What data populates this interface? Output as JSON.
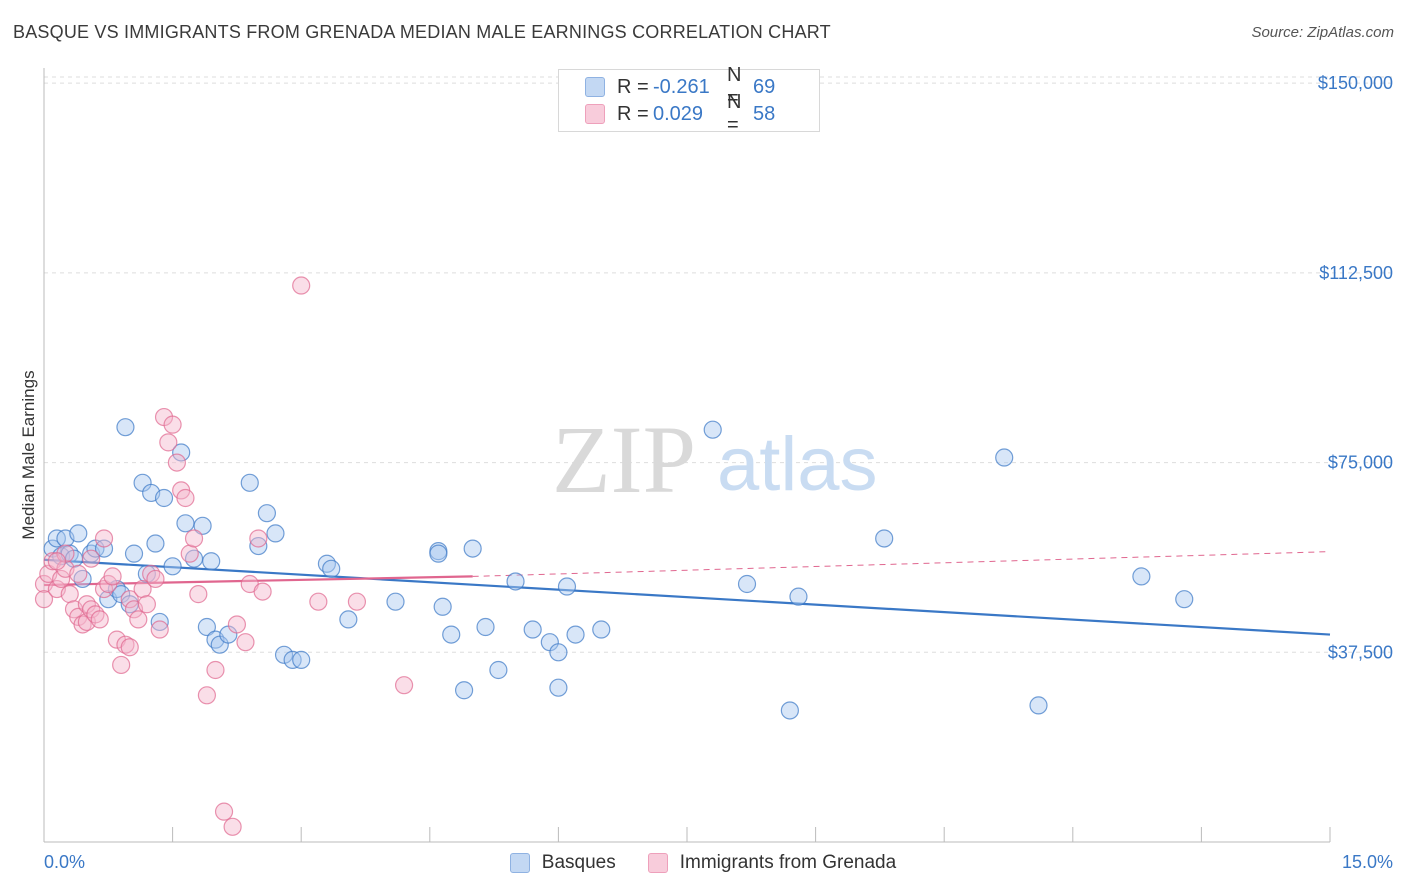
{
  "title": "BASQUE VS IMMIGRANTS FROM GRENADA MEDIAN MALE EARNINGS CORRELATION CHART",
  "source": "Source: ZipAtlas.com",
  "watermark": {
    "zip": "ZIP",
    "atlas": "atlas"
  },
  "legend_top": [
    {
      "label": "R =",
      "r": "-0.261",
      "n_label": "N =",
      "n": "69"
    },
    {
      "label": "R =",
      "r": "0.029",
      "n_label": "N =",
      "n": "58"
    }
  ],
  "legend_bottom": [
    "Basques",
    "Immigrants from Grenada"
  ],
  "colors": {
    "blue": "#3a78c6",
    "blue_fill": "#a9c8ef",
    "pink": "#e0668f",
    "pink_fill": "#f5b6cb",
    "grid": "#dddddd"
  },
  "chart_data": {
    "type": "scatter",
    "xlabel": "",
    "ylabel": "Median Male Earnings",
    "xlim": [
      0,
      15
    ],
    "ylim": [
      0,
      153000
    ],
    "x_tick_labels": [
      "0.0%",
      "15.0%"
    ],
    "y_ticks": [
      37500,
      75000,
      112500,
      150000
    ],
    "y_tick_labels": [
      "$37,500",
      "$75,000",
      "$112,500",
      "$150,000"
    ],
    "grid": true,
    "series": [
      {
        "name": "Basques",
        "color": "blue",
        "points": [
          [
            0.1,
            58000
          ],
          [
            0.15,
            60000
          ],
          [
            0.2,
            56500
          ],
          [
            0.25,
            60000
          ],
          [
            0.3,
            57000
          ],
          [
            0.35,
            56000
          ],
          [
            0.4,
            61000
          ],
          [
            0.45,
            52000
          ],
          [
            0.55,
            57000
          ],
          [
            0.6,
            58000
          ],
          [
            0.7,
            58000
          ],
          [
            0.75,
            48000
          ],
          [
            0.85,
            50000
          ],
          [
            0.9,
            49000
          ],
          [
            0.95,
            82000
          ],
          [
            1.0,
            47000
          ],
          [
            1.05,
            57000
          ],
          [
            1.15,
            71000
          ],
          [
            1.2,
            53000
          ],
          [
            1.25,
            69000
          ],
          [
            1.3,
            59000
          ],
          [
            1.35,
            43500
          ],
          [
            1.4,
            68000
          ],
          [
            1.5,
            54500
          ],
          [
            1.6,
            77000
          ],
          [
            1.65,
            63000
          ],
          [
            1.75,
            56000
          ],
          [
            1.85,
            62500
          ],
          [
            1.9,
            42500
          ],
          [
            1.95,
            55500
          ],
          [
            2.0,
            40000
          ],
          [
            2.05,
            39000
          ],
          [
            2.15,
            41000
          ],
          [
            2.4,
            71000
          ],
          [
            2.5,
            58500
          ],
          [
            2.6,
            65000
          ],
          [
            2.7,
            61000
          ],
          [
            2.8,
            37000
          ],
          [
            2.9,
            36000
          ],
          [
            3.0,
            36000
          ],
          [
            3.3,
            55000
          ],
          [
            3.35,
            54000
          ],
          [
            3.55,
            44000
          ],
          [
            4.1,
            47500
          ],
          [
            4.6,
            57500
          ],
          [
            4.6,
            57000
          ],
          [
            4.65,
            46500
          ],
          [
            4.75,
            41000
          ],
          [
            4.9,
            30000
          ],
          [
            5.0,
            58000
          ],
          [
            5.15,
            42500
          ],
          [
            5.3,
            34000
          ],
          [
            5.5,
            51500
          ],
          [
            5.7,
            42000
          ],
          [
            5.9,
            39500
          ],
          [
            6.1,
            50500
          ],
          [
            6.0,
            37500
          ],
          [
            6.0,
            30500
          ],
          [
            6.2,
            41000
          ],
          [
            6.5,
            42000
          ],
          [
            7.8,
            81500
          ],
          [
            8.2,
            51000
          ],
          [
            8.7,
            26000
          ],
          [
            8.8,
            48500
          ],
          [
            9.8,
            60000
          ],
          [
            11.2,
            76000
          ],
          [
            11.6,
            27000
          ],
          [
            12.8,
            52500
          ],
          [
            13.3,
            48000
          ]
        ]
      },
      {
        "name": "Immigrants from Grenada",
        "color": "pink",
        "points": [
          [
            0.0,
            51000
          ],
          [
            0.0,
            48000
          ],
          [
            0.05,
            53000
          ],
          [
            0.1,
            55500
          ],
          [
            0.15,
            50000
          ],
          [
            0.2,
            52000
          ],
          [
            0.25,
            54000
          ],
          [
            0.3,
            49000
          ],
          [
            0.35,
            46000
          ],
          [
            0.4,
            44500
          ],
          [
            0.45,
            43000
          ],
          [
            0.5,
            43500
          ],
          [
            0.5,
            47000
          ],
          [
            0.55,
            46000
          ],
          [
            0.6,
            45000
          ],
          [
            0.65,
            44000
          ],
          [
            0.7,
            50000
          ],
          [
            0.75,
            51000
          ],
          [
            0.8,
            52500
          ],
          [
            0.85,
            40000
          ],
          [
            0.9,
            35000
          ],
          [
            0.95,
            39000
          ],
          [
            1.0,
            48000
          ],
          [
            1.05,
            46000
          ],
          [
            1.1,
            44000
          ],
          [
            1.15,
            50000
          ],
          [
            1.2,
            47000
          ],
          [
            1.25,
            53000
          ],
          [
            1.3,
            52000
          ],
          [
            1.35,
            42000
          ],
          [
            1.4,
            84000
          ],
          [
            1.45,
            79000
          ],
          [
            1.5,
            82500
          ],
          [
            1.55,
            75000
          ],
          [
            1.6,
            69500
          ],
          [
            1.65,
            68000
          ],
          [
            1.7,
            57000
          ],
          [
            1.75,
            60000
          ],
          [
            1.8,
            49000
          ],
          [
            1.9,
            29000
          ],
          [
            2.0,
            34000
          ],
          [
            2.1,
            6000
          ],
          [
            2.2,
            3000
          ],
          [
            2.25,
            43000
          ],
          [
            2.35,
            39500
          ],
          [
            2.4,
            51000
          ],
          [
            2.5,
            60000
          ],
          [
            2.55,
            49500
          ],
          [
            3.0,
            110000
          ],
          [
            3.2,
            47500
          ],
          [
            3.65,
            47500
          ],
          [
            4.2,
            31000
          ],
          [
            0.25,
            57000
          ],
          [
            0.55,
            56000
          ],
          [
            0.7,
            60000
          ],
          [
            1.0,
            38500
          ],
          [
            0.4,
            53000
          ],
          [
            0.15,
            55500
          ]
        ]
      }
    ],
    "trendlines": [
      {
        "series": "Basques",
        "x": [
          0,
          15
        ],
        "y": [
          55800,
          41000
        ],
        "style": "solid"
      },
      {
        "series": "Immigrants from Grenada",
        "x": [
          0,
          5
        ],
        "y": [
          50800,
          52500
        ],
        "style": "solid"
      },
      {
        "series": "Immigrants from Grenada",
        "x": [
          5,
          15
        ],
        "y": [
          52500,
          57400
        ],
        "style": "dashed"
      }
    ]
  }
}
